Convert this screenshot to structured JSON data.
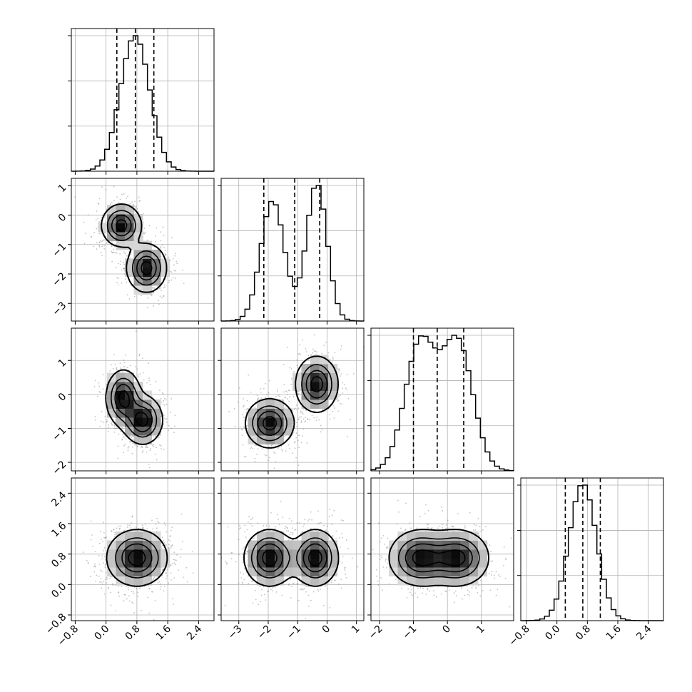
{
  "chart_data": {
    "type": "corner",
    "grid": true,
    "parameters": [
      {
        "ticks": [
          -0.8,
          0.0,
          0.8,
          1.6,
          2.4
        ],
        "tick_labels": [
          "−0.8",
          "0.0",
          "0.8",
          "1.6",
          "2.4"
        ],
        "range": [
          -0.9,
          2.8
        ],
        "mean": 0.75,
        "sd": 0.38,
        "quantiles": [
          0.28,
          0.76,
          1.24
        ]
      },
      {
        "ticks": [
          -3,
          -2,
          -1,
          0,
          1
        ],
        "tick_labels": [
          "−3",
          "−2",
          "−1",
          "0",
          "1"
        ],
        "range": [
          -3.6,
          1.25
        ],
        "mixture": [
          {
            "weight": 0.5,
            "mean": -1.85,
            "sd": 0.4
          },
          {
            "weight": 0.5,
            "mean": -0.35,
            "sd": 0.35
          }
        ],
        "quantiles": [
          -2.15,
          -1.1,
          -0.25
        ]
      },
      {
        "ticks": [
          -2,
          -1,
          0,
          1
        ],
        "tick_labels": [
          "−2",
          "−1",
          "0",
          "1"
        ],
        "range": [
          -2.25,
          1.95
        ],
        "mixture": [
          {
            "weight": 0.5,
            "mean": -0.8,
            "sd": 0.45
          },
          {
            "weight": 0.5,
            "mean": 0.3,
            "sd": 0.45
          }
        ],
        "quantiles": [
          -1.0,
          -0.3,
          0.48
        ]
      },
      {
        "ticks": [
          -0.8,
          0.0,
          0.8,
          1.6,
          2.4
        ],
        "tick_labels": [
          "−0.8",
          "0.0",
          "0.8",
          "1.6",
          "2.4"
        ],
        "range": [
          -0.95,
          2.8
        ],
        "mean": 0.68,
        "sd": 0.36,
        "quantiles": [
          0.22,
          0.68,
          1.14
        ]
      }
    ],
    "pair_modes": [
      {
        "row": 1,
        "col": 0,
        "modes": [
          {
            "x": 0.4,
            "y": -0.35,
            "sx": 0.25,
            "sy": 0.35
          },
          {
            "x": 1.05,
            "y": -1.8,
            "sx": 0.25,
            "sy": 0.4
          }
        ]
      },
      {
        "row": 2,
        "col": 0,
        "modes": [
          {
            "x": 0.45,
            "y": -0.1,
            "sx": 0.22,
            "sy": 0.4
          },
          {
            "x": 0.95,
            "y": -0.75,
            "sx": 0.25,
            "sy": 0.35
          }
        ]
      },
      {
        "row": 2,
        "col": 1,
        "modes": [
          {
            "x": -1.95,
            "y": -0.85,
            "sx": 0.4,
            "sy": 0.35
          },
          {
            "x": -0.35,
            "y": 0.3,
            "sx": 0.35,
            "sy": 0.4
          }
        ]
      },
      {
        "row": 3,
        "col": 0,
        "modes": [
          {
            "x": 0.8,
            "y": 0.7,
            "sx": 0.38,
            "sy": 0.36
          }
        ]
      },
      {
        "row": 3,
        "col": 1,
        "modes": [
          {
            "x": -1.95,
            "y": 0.7,
            "sx": 0.42,
            "sy": 0.36
          },
          {
            "x": -0.4,
            "y": 0.7,
            "sx": 0.38,
            "sy": 0.36
          }
        ]
      },
      {
        "row": 3,
        "col": 2,
        "modes": [
          {
            "x": -0.8,
            "y": 0.7,
            "sx": 0.45,
            "sy": 0.36
          },
          {
            "x": 0.3,
            "y": 0.7,
            "sx": 0.45,
            "sy": 0.36
          }
        ]
      }
    ]
  }
}
